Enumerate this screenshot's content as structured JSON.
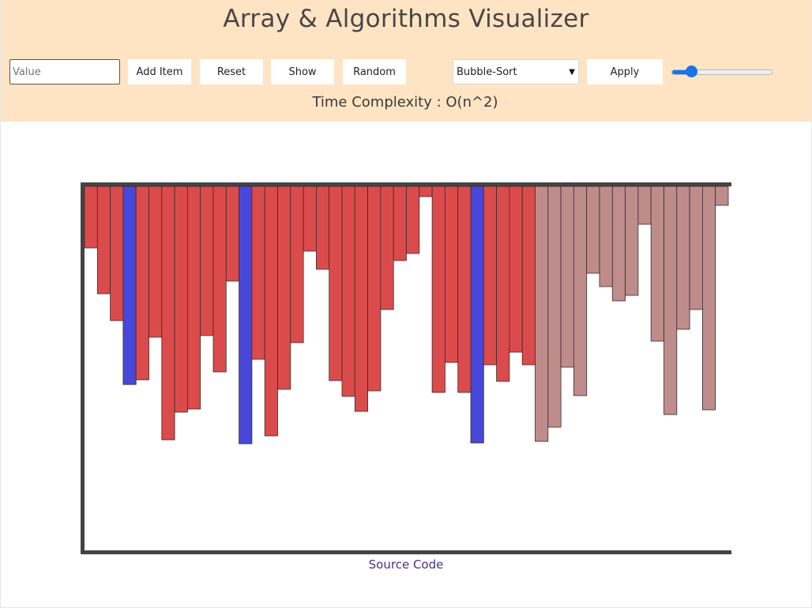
{
  "header": {
    "title": "Array & Algorithms Visualizer",
    "value_placeholder": "Value",
    "buttons": {
      "add": "Add Item",
      "reset": "Reset",
      "show": "Show",
      "random": "Random",
      "apply": "Apply"
    },
    "algorithm_select": {
      "selected": "Bubble-Sort"
    },
    "speed_slider": {
      "value_fraction": 0.16
    },
    "complexity": "Time Complexity : O(n^2)"
  },
  "colors": {
    "unsorted": "#db4b4b",
    "sorted": "#bf8c8c",
    "comparing": "#4848d8",
    "axis": "#444444"
  },
  "array": {
    "values": [
      78,
      136,
      170,
      251,
      245,
      191,
      321,
      286,
      282,
      189,
      235,
      120,
      326,
      219,
      316,
      257,
      198,
      82,
      105,
      246,
      266,
      285,
      259,
      156,
      94,
      85,
      13,
      261,
      223,
      261,
      325,
      226,
      247,
      210,
      226,
      323,
      305,
      229,
      265,
      110,
      127,
      145,
      138,
      48,
      196,
      289,
      181,
      156,
      283,
      24
    ],
    "state": [
      "u",
      "u",
      "u",
      "c",
      "u",
      "u",
      "u",
      "u",
      "u",
      "u",
      "u",
      "u",
      "c",
      "u",
      "u",
      "u",
      "u",
      "u",
      "u",
      "u",
      "u",
      "u",
      "u",
      "u",
      "u",
      "u",
      "u",
      "u",
      "u",
      "u",
      "c",
      "u",
      "u",
      "u",
      "u",
      "s",
      "s",
      "s",
      "s",
      "s",
      "s",
      "s",
      "s",
      "s",
      "s",
      "s",
      "s",
      "s",
      "s",
      "s"
    ]
  },
  "footer": {
    "source_link": "Source Code"
  }
}
